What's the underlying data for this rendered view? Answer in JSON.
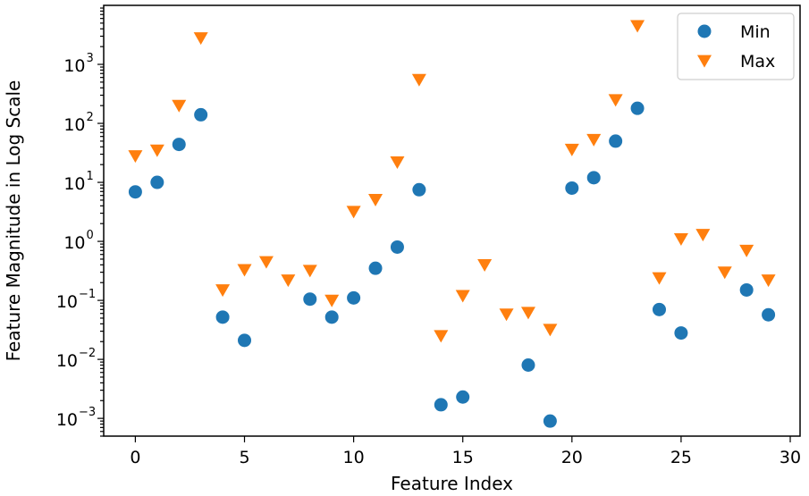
{
  "chart_data": {
    "type": "scatter",
    "title": "",
    "xlabel": "Feature Index",
    "ylabel": "Feature Magnitude in Log Scale",
    "xlim": [
      -1.45,
      30.45
    ],
    "ylim": [
      0.0005,
      10000
    ],
    "yscale": "log",
    "x_ticks": [
      0,
      5,
      10,
      15,
      20,
      25,
      30
    ],
    "x_tick_labels": [
      "0",
      "5",
      "10",
      "15",
      "20",
      "25",
      "30"
    ],
    "y_ticks": [
      0.001,
      0.01,
      0.1,
      1,
      10,
      100,
      1000
    ],
    "y_tick_labels": [
      {
        "base": "10",
        "exp": "−3"
      },
      {
        "base": "10",
        "exp": "−2"
      },
      {
        "base": "10",
        "exp": "−1"
      },
      {
        "base": "10",
        "exp": "0"
      },
      {
        "base": "10",
        "exp": "1"
      },
      {
        "base": "10",
        "exp": "2"
      },
      {
        "base": "10",
        "exp": "3"
      }
    ],
    "grid": false,
    "legend_position": "top-right",
    "x": [
      0,
      1,
      2,
      3,
      4,
      5,
      6,
      7,
      8,
      9,
      10,
      11,
      12,
      13,
      14,
      15,
      16,
      17,
      18,
      19,
      20,
      21,
      22,
      23,
      24,
      25,
      26,
      27,
      28,
      29
    ],
    "series": [
      {
        "name": "Min",
        "marker": "circle",
        "color": "#1f77b4",
        "values": [
          6.9,
          10,
          44,
          140,
          0.052,
          null,
          null,
          null,
          0.105,
          0.052,
          0.11,
          0.35,
          0.8,
          7.5,
          0.0017,
          0.0023,
          null,
          null,
          0.008,
          0.0009,
          8,
          12,
          50,
          180,
          0.07,
          0.028,
          null,
          null,
          0.15,
          0.057
        ],
        "values_note_x5": 0.021
      },
      {
        "name": "Max",
        "marker": "triangle-down",
        "color": "#ff7f0e",
        "values": [
          28,
          35,
          200,
          2800,
          0.15,
          0.33,
          0.45,
          0.22,
          0.32,
          0.1,
          3.2,
          5.1,
          22,
          550,
          0.025,
          0.12,
          0.4,
          0.058,
          0.062,
          0.032,
          36,
          53,
          250,
          4500,
          0.24,
          1.1,
          1.3,
          0.3,
          0.7,
          0.22
        ]
      }
    ]
  }
}
